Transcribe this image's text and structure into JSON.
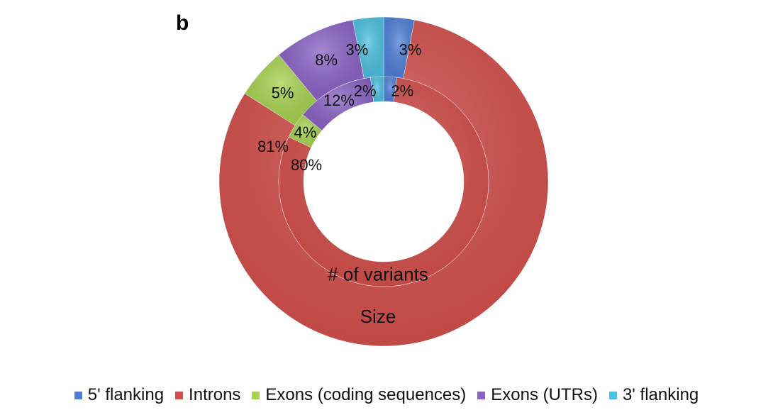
{
  "panel_label": "b",
  "colors": {
    "5' flanking": "#4f7fd6",
    "Introns": "#d44f4b",
    "Exons (coding sequences)": "#a6d24f",
    "Exons (UTRs)": "#8a62c6",
    "3' flanking": "#4cc0e0"
  },
  "chart_data": {
    "type": "pie",
    "subtype": "donut",
    "title": "",
    "legend_position": "bottom",
    "categories": [
      "5' flanking",
      "Introns",
      "Exons (coding sequences)",
      "Exons (UTRs)",
      "3' flanking"
    ],
    "series": [
      {
        "name": "Size",
        "ring": "outer",
        "values": [
          3,
          81,
          5,
          8,
          3
        ],
        "labels": [
          "3%",
          "81%",
          "5%",
          "8%",
          "3%"
        ]
      },
      {
        "name": "# of variants",
        "ring": "inner",
        "values": [
          2,
          80,
          4,
          12,
          2
        ],
        "labels": [
          "2%",
          "80%",
          "4%",
          "12%",
          "2%"
        ]
      }
    ]
  }
}
